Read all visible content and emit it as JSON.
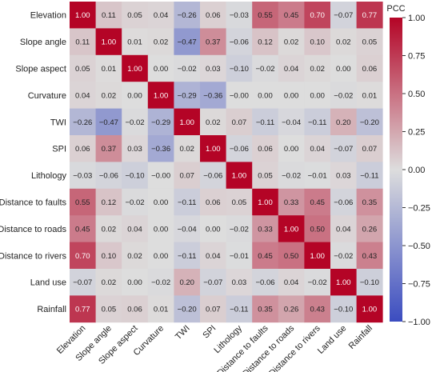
{
  "chart_data": {
    "type": "heatmap",
    "title": "",
    "colorbar_label": "PCC",
    "colorbar_ticks": [
      1.0,
      0.75,
      0.5,
      0.25,
      0.0,
      -0.25,
      -0.5,
      -0.75,
      -1.0
    ],
    "colorbar_tick_labels": [
      "1.00",
      "0.75",
      "0.50",
      "0.25",
      "0.00",
      "−0.25",
      "−0.50",
      "−0.75",
      "−1.00"
    ],
    "vmin": -1,
    "vmax": 1,
    "colormap": "coolwarm",
    "labels": [
      "Elevation",
      "Slope angle",
      "Slope aspect",
      "Curvature",
      "TWI",
      "SPI",
      "Lithology",
      "Distance to faults",
      "Distance to roads",
      "Distance to rivers",
      "Land use",
      "Rainfall"
    ],
    "matrix": [
      [
        1.0,
        0.11,
        0.05,
        0.04,
        -0.26,
        0.06,
        -0.03,
        0.55,
        0.45,
        0.7,
        -0.07,
        0.77
      ],
      [
        0.11,
        1.0,
        0.01,
        0.02,
        -0.47,
        0.37,
        -0.06,
        0.12,
        0.02,
        0.1,
        0.02,
        0.05
      ],
      [
        0.05,
        0.01,
        1.0,
        0.0,
        -0.02,
        0.03,
        -0.1,
        -0.02,
        0.04,
        0.02,
        0.0,
        0.06
      ],
      [
        0.04,
        0.02,
        0.0,
        1.0,
        -0.29,
        -0.36,
        -0.0,
        0.0,
        0.0,
        0.0,
        -0.02,
        0.01
      ],
      [
        -0.26,
        -0.47,
        -0.02,
        -0.29,
        1.0,
        0.02,
        0.07,
        -0.11,
        -0.04,
        -0.11,
        0.2,
        -0.2
      ],
      [
        0.06,
        0.37,
        0.03,
        -0.36,
        0.02,
        1.0,
        -0.06,
        0.06,
        0.0,
        0.04,
        -0.07,
        0.07
      ],
      [
        -0.03,
        -0.06,
        -0.1,
        -0.0,
        0.07,
        -0.06,
        1.0,
        0.05,
        -0.02,
        -0.01,
        0.03,
        -0.11
      ],
      [
        0.55,
        0.12,
        -0.02,
        0.0,
        -0.11,
        0.06,
        0.05,
        1.0,
        0.33,
        0.45,
        -0.06,
        0.35
      ],
      [
        0.45,
        0.02,
        0.04,
        0.0,
        -0.04,
        0.0,
        -0.02,
        0.33,
        1.0,
        0.5,
        0.04,
        0.26
      ],
      [
        0.7,
        0.1,
        0.02,
        0.0,
        -0.11,
        0.04,
        -0.01,
        0.45,
        0.5,
        1.0,
        -0.02,
        0.43
      ],
      [
        -0.07,
        0.02,
        0.0,
        -0.02,
        0.2,
        -0.07,
        0.03,
        -0.06,
        0.04,
        -0.02,
        1.0,
        -0.1
      ],
      [
        0.77,
        0.05,
        0.06,
        0.01,
        -0.2,
        0.07,
        -0.11,
        0.35,
        0.26,
        0.43,
        -0.1,
        1.0
      ]
    ],
    "colors": {
      "low": "#3b4cc0",
      "mid": "#dddddd",
      "high": "#b40426"
    }
  }
}
